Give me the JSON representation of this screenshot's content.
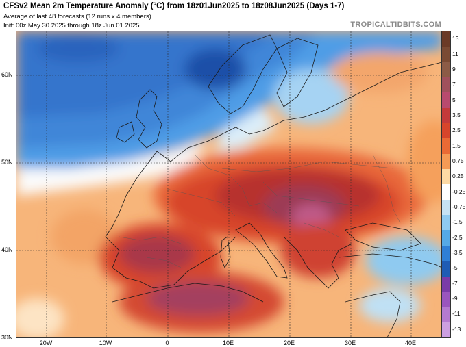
{
  "header": {
    "title": "CFSv2 Mean 2m Temperature Anomaly (°C) from 18z01Jun2025 to 18z08Jun2025 (Days 1-7)",
    "subtitle": "Average of last 48 forecasts (12 runs x 4 members)",
    "init": "Init: 00z May 30 2025 through 18z Jun 01 2025",
    "brand": "TROPICALTIDBITS.COM"
  },
  "map": {
    "lat_labels": [
      "60N",
      "50N",
      "40N",
      "30N"
    ],
    "lon_labels": [
      "20W",
      "10W",
      "0",
      "10E",
      "20E",
      "30E",
      "40E"
    ]
  },
  "colorbar": {
    "labels": [
      "13",
      "11",
      "9",
      "7",
      "5",
      "3.5",
      "2.5",
      "1.5",
      "0.75",
      "0.25",
      "-0.25",
      "-0.75",
      "-1.5",
      "-2.5",
      "-3.5",
      "-5",
      "-7",
      "-9",
      "-11",
      "-13"
    ],
    "colors": [
      "#6b3a26",
      "#7a4a33",
      "#8c5b46",
      "#a0505c",
      "#b84a6e",
      "#c43a3a",
      "#d7452b",
      "#ea6a35",
      "#f59a55",
      "#fcd9a4",
      "#ffffff",
      "#c6e2f3",
      "#8fcaf0",
      "#55a9e6",
      "#2f7fd6",
      "#1f5cb4",
      "#7a3ba8",
      "#9a55be",
      "#b47ad0",
      "#cc9fe0"
    ]
  }
}
